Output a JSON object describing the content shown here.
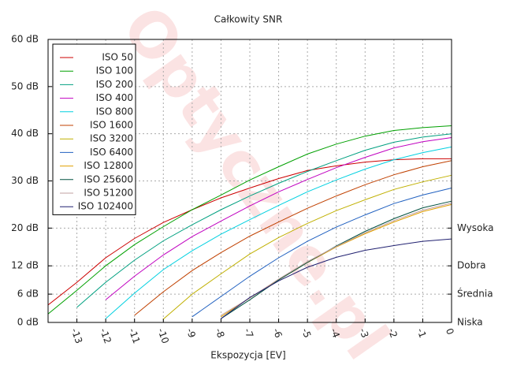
{
  "chart_data": {
    "type": "line",
    "title": "Całkowity SNR",
    "xlabel": "Ekspozycja [EV]",
    "watermark": "Optyczne.pl",
    "x": [
      -14,
      -13,
      -12,
      -11,
      -10,
      -9,
      -8,
      -7,
      -6,
      -5,
      -4,
      -3,
      -2,
      -1,
      0
    ],
    "xlim": [
      -14,
      0
    ],
    "xticks": [
      -13,
      -12,
      -11,
      -10,
      -9,
      -8,
      -7,
      -6,
      -5,
      -4,
      -3,
      -2,
      -1,
      0
    ],
    "ylim": [
      0,
      60
    ],
    "yticks": [
      {
        "value": 0,
        "label": "0 dB"
      },
      {
        "value": 6,
        "label": "6 dB"
      },
      {
        "value": 12,
        "label": "12 dB"
      },
      {
        "value": 20,
        "label": "20 dB"
      },
      {
        "value": 30,
        "label": "30 dB"
      },
      {
        "value": 40,
        "label": "40 dB"
      },
      {
        "value": 50,
        "label": "50 dB"
      },
      {
        "value": 60,
        "label": "60 dB"
      }
    ],
    "y2lim": [
      0,
      60
    ],
    "y2ticks": [
      {
        "value": 0,
        "label": "Niska"
      },
      {
        "value": 6,
        "label": "Średnia"
      },
      {
        "value": 12,
        "label": "Dobra"
      },
      {
        "value": 20,
        "label": "Wysoka"
      }
    ],
    "grid": true,
    "legend": "top-left",
    "series": [
      {
        "name": "ISO 50",
        "color": "#cc0000",
        "values": [
          3.7,
          8.5,
          13.7,
          17.8,
          21.2,
          23.9,
          26.4,
          28.5,
          30.5,
          32.2,
          33.2,
          34,
          34.5,
          34.7,
          34.7
        ]
      },
      {
        "name": "ISO 100",
        "color": "#00a000",
        "values": [
          1.8,
          6.8,
          12,
          16.5,
          20.3,
          23.9,
          27,
          30.2,
          33,
          35.7,
          37.8,
          39.5,
          40.7,
          41.3,
          41.7
        ]
      },
      {
        "name": "ISO 200",
        "color": "#00a080",
        "values": [
          null,
          3.2,
          8.5,
          13.2,
          17.3,
          20.7,
          23.9,
          26.8,
          29.5,
          32,
          34.3,
          36.5,
          38.2,
          39.3,
          40
        ]
      },
      {
        "name": "ISO 400",
        "color": "#c000c0",
        "values": [
          null,
          null,
          4.8,
          9.8,
          14.3,
          18.2,
          21.5,
          24.7,
          27.7,
          30.3,
          32.8,
          35,
          37,
          38.3,
          39.2
        ]
      },
      {
        "name": "ISO 800",
        "color": "#00d0e0",
        "values": [
          null,
          null,
          0.8,
          6.2,
          11.2,
          15.2,
          18.7,
          21.8,
          24.8,
          27.7,
          30.2,
          32.5,
          34.5,
          36,
          37.2
        ]
      },
      {
        "name": "ISO 1600",
        "color": "#c04000",
        "values": [
          null,
          null,
          null,
          1.5,
          6.5,
          11,
          14.8,
          18.3,
          21.3,
          24.2,
          26.8,
          29.2,
          31.3,
          33,
          34.3
        ]
      },
      {
        "name": "ISO 3200",
        "color": "#c0b000",
        "values": [
          null,
          null,
          null,
          null,
          0.7,
          6,
          10.3,
          14.5,
          18,
          21,
          23.7,
          26,
          28.2,
          29.8,
          31.2
        ]
      },
      {
        "name": "ISO 6400",
        "color": "#2060c0",
        "values": [
          null,
          null,
          null,
          null,
          null,
          1.2,
          5.5,
          9.8,
          13.7,
          17.2,
          20.2,
          22.8,
          25.2,
          27,
          28.5
        ]
      },
      {
        "name": "ISO 12800",
        "color": "#e0a000",
        "values": [
          null,
          null,
          null,
          null,
          null,
          null,
          1.2,
          5.2,
          9,
          12.7,
          16,
          18.8,
          21.3,
          23.5,
          25
        ]
      },
      {
        "name": "ISO 25600",
        "color": "#005040",
        "values": [
          null,
          null,
          null,
          null,
          null,
          null,
          0.8,
          4.8,
          9,
          12.7,
          16.2,
          19.3,
          22,
          24.3,
          25.7
        ]
      },
      {
        "name": "ISO 51200",
        "color": "#c0a0a0",
        "values": [
          null,
          null,
          null,
          null,
          null,
          null,
          1.5,
          5.2,
          9.2,
          12.9,
          16.1,
          19,
          21.6,
          23.8,
          25.3
        ]
      },
      {
        "name": "ISO 102400",
        "color": "#202070",
        "values": [
          null,
          null,
          null,
          null,
          null,
          null,
          0.8,
          5.3,
          8.8,
          11.7,
          13.8,
          15.3,
          16.3,
          17.2,
          17.7
        ]
      }
    ]
  }
}
